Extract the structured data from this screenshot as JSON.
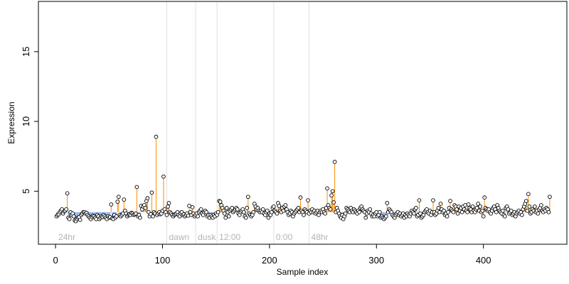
{
  "chart_data": {
    "type": "scatter",
    "title": "",
    "xlabel": "Sample index",
    "ylabel": "Expression",
    "xlim": [
      -16,
      478
    ],
    "ylim": [
      1.2,
      18.6
    ],
    "x_ticks": [
      0,
      100,
      200,
      300,
      400
    ],
    "y_ticks": [
      5,
      10,
      15
    ],
    "baseline": 3.5,
    "grid": false,
    "legend": "none",
    "colors": {
      "points_fill": "#ffffff",
      "points_stroke": "#000000",
      "segments_up": "#ff8c00",
      "segments_down": "#6495ed",
      "phase_lines": "#e0e0e0",
      "phase_text": "#b4b4b4"
    },
    "phase_markers": [
      {
        "x": 0,
        "label": "24hr",
        "line": false
      },
      {
        "x": 104,
        "label": "dawn",
        "line": true
      },
      {
        "x": 131,
        "label": "dusk",
        "line": true
      },
      {
        "x": 151,
        "label": "12:00",
        "line": true
      },
      {
        "x": 204,
        "label": "0:00",
        "line": true
      },
      {
        "x": 237,
        "label": "48hr",
        "line": true
      }
    ],
    "series": [
      {
        "values": [
          3.2,
          3.3,
          3.35,
          3.5,
          3.6,
          3.7,
          3.4,
          3.55,
          3.6,
          3.7,
          4.85,
          3.1,
          3.0,
          3.5,
          3.3,
          3.4,
          3.2,
          2.9,
          2.85,
          3.0,
          3.1,
          3.15,
          2.95,
          3.3,
          3.4,
          3.5,
          3.5,
          3.4,
          3.45,
          3.3,
          3.2,
          3.1,
          3.0,
          3.15,
          3.25,
          3.2,
          3.1,
          3.0,
          3.3,
          3.2,
          3.0,
          3.1,
          3.2,
          3.15,
          3.3,
          3.2,
          3.1,
          3.0,
          3.2,
          3.1,
          3.15,
          4.05,
          3.05,
          3.0,
          3.3,
          3.1,
          3.2,
          4.25,
          4.6,
          3.3,
          3.2,
          3.3,
          3.4,
          4.4,
          3.6,
          3.4,
          3.2,
          3.3,
          3.35,
          3.3,
          3.45,
          3.4,
          3.3,
          3.35,
          3.4,
          5.3,
          3.2,
          3.3,
          3.1,
          3.95,
          3.7,
          3.9,
          4.0,
          3.8,
          4.3,
          4.5,
          3.5,
          3.2,
          3.35,
          4.9,
          3.2,
          3.5,
          3.4,
          8.9,
          3.3,
          3.4,
          3.5,
          3.35,
          3.4,
          3.6,
          6.05,
          3.7,
          3.5,
          3.3,
          3.9,
          4.15,
          3.5,
          3.4,
          3.3,
          3.2,
          3.3,
          3.35,
          3.4,
          3.5,
          3.3,
          3.2,
          3.4,
          3.5,
          3.3,
          3.35,
          3.2,
          3.3,
          3.4,
          3.25,
          3.95,
          3.5,
          3.3,
          3.85,
          3.4,
          3.2,
          3.3,
          3.4,
          3.2,
          3.5,
          3.6,
          3.7,
          3.4,
          3.3,
          3.5,
          3.6,
          3.5,
          3.2,
          3.3,
          3.1,
          3.3,
          3.2,
          3.1,
          3.3,
          3.2,
          3.4,
          3.3,
          3.5,
          4.3,
          4.25,
          4.0,
          3.8,
          3.6,
          3.4,
          3.1,
          3.8,
          3.5,
          3.2,
          3.6,
          3.7,
          3.8,
          3.5,
          3.6,
          3.7,
          3.8,
          3.7,
          3.4,
          3.3,
          3.5,
          3.6,
          3.7,
          3.5,
          3.2,
          3.1,
          3.8,
          4.6,
          3.4,
          3.3,
          3.2,
          3.3,
          3.5,
          4.1,
          3.9,
          3.7,
          3.8,
          3.6,
          3.5,
          3.6,
          3.5,
          3.7,
          3.4,
          3.3,
          3.5,
          3.6,
          3.1,
          3.4,
          3.3,
          3.5,
          3.8,
          3.9,
          3.6,
          3.5,
          3.4,
          4.15,
          3.95,
          3.6,
          3.5,
          3.8,
          3.6,
          3.9,
          4.0,
          3.7,
          3.5,
          3.3,
          3.4,
          3.6,
          3.5,
          3.2,
          3.4,
          3.5,
          3.6,
          3.7,
          3.8,
          3.5,
          4.55,
          3.6,
          3.5,
          3.3,
          3.7,
          3.6,
          3.5,
          4.35,
          3.4,
          3.6,
          3.5,
          3.7,
          3.5,
          3.6,
          3.4,
          3.5,
          3.6,
          3.3,
          3.5,
          3.6,
          3.5,
          3.7,
          3.5,
          3.4,
          3.8,
          5.2,
          4.0,
          3.8,
          3.7,
          4.7,
          5.0,
          4.2,
          7.1,
          3.5,
          3.8,
          3.6,
          3.4,
          3.2,
          3.1,
          3.3,
          3.0,
          3.2,
          3.4,
          3.8,
          3.7,
          3.6,
          3.5,
          3.8,
          3.6,
          3.5,
          3.7,
          3.6,
          3.5,
          3.4,
          3.6,
          3.5,
          3.8,
          3.9,
          3.7,
          3.6,
          3.5,
          3.1,
          3.4,
          3.6,
          3.5,
          3.7,
          3.4,
          3.2,
          3.3,
          3.2,
          3.4,
          3.5,
          3.2,
          3.3,
          3.5,
          3.1,
          3.2,
          3.1,
          3.0,
          3.1,
          3.2,
          4.15,
          3.5,
          3.7,
          3.6,
          3.5,
          3.3,
          3.2,
          3.1,
          3.3,
          3.4,
          3.5,
          3.3,
          3.4,
          3.2,
          3.3,
          3.4,
          3.1,
          3.3,
          3.2,
          3.4,
          3.3,
          3.2,
          3.4,
          3.6,
          3.5,
          3.4,
          3.7,
          3.8,
          3.2,
          3.3,
          4.35,
          3.4,
          3.1,
          3.2,
          3.3,
          3.5,
          3.6,
          3.7,
          3.5,
          3.4,
          3.6,
          3.3,
          3.5,
          4.35,
          3.5,
          3.3,
          3.4,
          3.6,
          3.8,
          3.5,
          4.1,
          3.7,
          3.5,
          3.6,
          3.3,
          3.4,
          3.2,
          3.5,
          3.8,
          4.3,
          3.7,
          3.6,
          3.5,
          4.0,
          3.9,
          3.7,
          3.4,
          3.9,
          3.6,
          3.8,
          3.5,
          3.9,
          3.7,
          4.0,
          3.6,
          3.5,
          4.05,
          3.8,
          3.7,
          3.5,
          3.9,
          3.6,
          3.5,
          3.7,
          3.8,
          4.1,
          3.6,
          3.9,
          3.5,
          3.6,
          3.2,
          4.55,
          3.8,
          3.7,
          3.6,
          3.7,
          3.5,
          3.4,
          3.6,
          3.8,
          3.9,
          3.7,
          3.5,
          4.0,
          3.8,
          3.6,
          3.5,
          3.4,
          3.6,
          3.3,
          3.2,
          3.8,
          3.9,
          3.7,
          3.4,
          3.5,
          3.6,
          3.3,
          3.4,
          3.5,
          3.2,
          3.4,
          3.5,
          3.6,
          3.4,
          3.5,
          3.3,
          3.7,
          3.9,
          4.1,
          4.3,
          3.6,
          4.8,
          3.9,
          3.4,
          3.5,
          3.7,
          3.6,
          3.9,
          3.5,
          3.6,
          3.4,
          3.7,
          3.8,
          4.0,
          3.6,
          3.5,
          3.7,
          3.6,
          3.8,
          3.7,
          3.5,
          4.6
        ]
      }
    ]
  }
}
